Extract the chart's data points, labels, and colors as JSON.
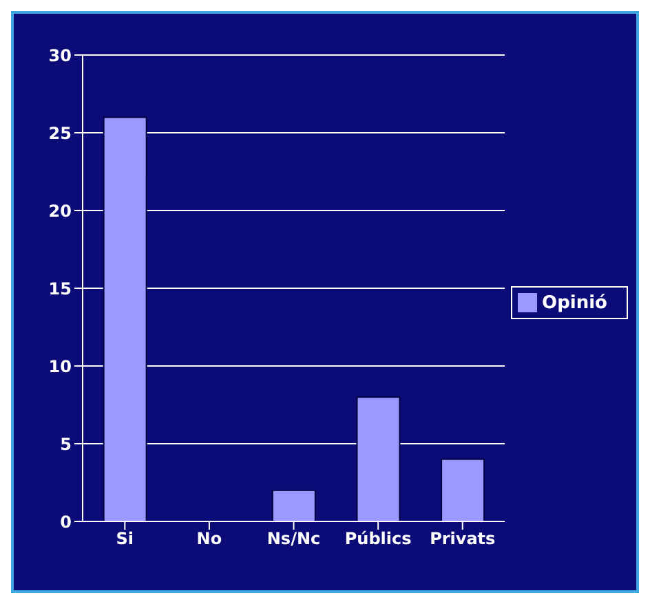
{
  "chart_data": {
    "type": "bar",
    "categories": [
      "Si",
      "No",
      "Ns/Nc",
      "Públics",
      "Privats"
    ],
    "series": [
      {
        "name": "Opinió",
        "color": "#9999ff",
        "values": [
          26,
          0,
          2,
          8,
          4
        ]
      }
    ],
    "ylim": [
      0,
      30
    ],
    "yticks": [
      0,
      5,
      10,
      15,
      20,
      25,
      30
    ],
    "grid": "y",
    "legend": "right"
  }
}
